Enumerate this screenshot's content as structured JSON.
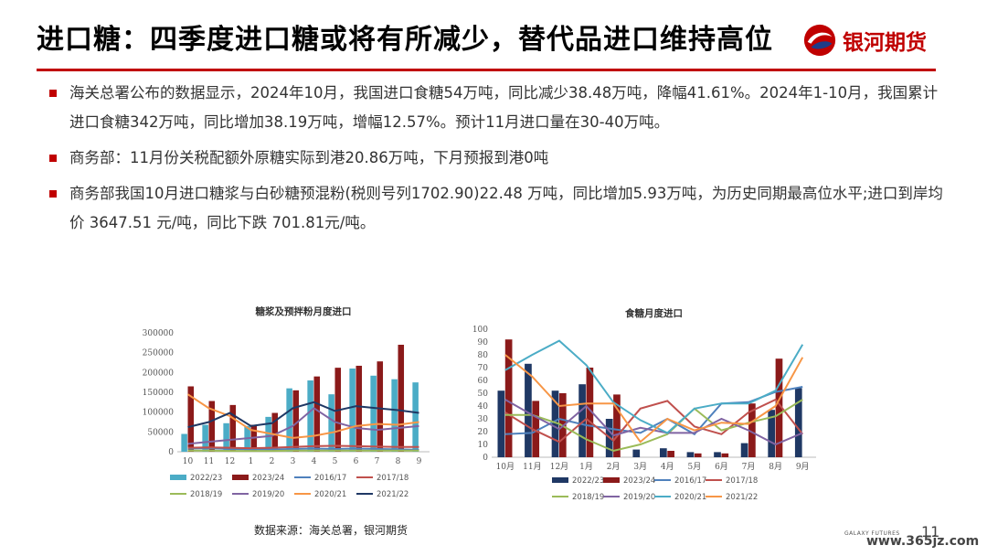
{
  "slide": {
    "title": "进口糖：四季度进口糖或将有所减少，替代品进口维持高位",
    "logo_text": "银河期货",
    "bullets": [
      "海关总署公布的数据显示，2024年10月，我国进口食糖54万吨，同比减少38.48万吨，降幅41.61%。2024年1-10月，我国累计进口食糖342万吨，同比增加38.19万吨，增幅12.57%。预计11月进口量在30-40万吨。",
      "商务部：11月份关税配额外原糖实际到港20.86万吨，下月预报到港0吨",
      "商务部我国10月进口糖浆与白砂糖预混粉(税则号列1702.90)22.48 万吨，同比增加5.93万吨，为历史同期最高位水平;进口到岸均价 3647.51 元/吨，同比下跌 701.81元/吨。"
    ],
    "source": "数据来源：海关总署，银河期货",
    "footer_brand": "GALAXY FUTURES",
    "page_number": "11",
    "watermark": "www.365jz.com",
    "colors": {
      "brand_red": "#c00000",
      "title_rule": "#c00000"
    }
  },
  "chart_data": [
    {
      "type": "bar",
      "title": "糖浆及预拌粉月度进口",
      "categories": [
        "10",
        "11",
        "12",
        "1",
        "2",
        "3",
        "4",
        "5",
        "6",
        "7",
        "8",
        "9"
      ],
      "ylim": [
        0,
        300000
      ],
      "yticks": [
        0,
        50000,
        100000,
        150000,
        200000,
        250000,
        300000
      ],
      "bar_series": [
        {
          "name": "2022/23",
          "color": "#4bacc6",
          "values": [
            45000,
            68000,
            72000,
            65000,
            88000,
            160000,
            180000,
            145000,
            210000,
            192000,
            183000,
            175000
          ]
        },
        {
          "name": "2023/24",
          "color": "#8b1a1a",
          "values": [
            165000,
            128000,
            118000,
            68000,
            98000,
            155000,
            190000,
            212000,
            217000,
            228000,
            270000,
            null
          ]
        }
      ],
      "line_series": [
        {
          "name": "2016/17",
          "color": "#4f81bd",
          "values": [
            8000,
            9000,
            7000,
            6000,
            6000,
            7000,
            8000,
            7000,
            8000,
            7000,
            6000,
            5000
          ]
        },
        {
          "name": "2017/18",
          "color": "#c0504d",
          "values": [
            10000,
            11000,
            10000,
            9000,
            10000,
            12000,
            14000,
            15000,
            14000,
            13000,
            12000,
            12000
          ]
        },
        {
          "name": "2018/19",
          "color": "#9bbb59",
          "values": [
            3000,
            3000,
            2000,
            2000,
            2000,
            3000,
            3000,
            3000,
            3000,
            3000,
            3000,
            3000
          ]
        },
        {
          "name": "2019/20",
          "color": "#8064a2",
          "values": [
            20000,
            25000,
            30000,
            35000,
            40000,
            65000,
            110000,
            75000,
            60000,
            55000,
            60000,
            65000
          ]
        },
        {
          "name": "2020/21",
          "color": "#f79646",
          "values": [
            145000,
            110000,
            90000,
            55000,
            45000,
            35000,
            40000,
            50000,
            65000,
            70000,
            68000,
            75000
          ]
        },
        {
          "name": "2021/22",
          "color": "#1f3864",
          "values": [
            62000,
            75000,
            98000,
            65000,
            72000,
            110000,
            125000,
            103000,
            115000,
            110000,
            105000,
            98000
          ]
        }
      ]
    },
    {
      "type": "bar",
      "title": "食糖月度进口",
      "categories": [
        "10月",
        "11月",
        "12月",
        "1月",
        "2月",
        "3月",
        "4月",
        "5月",
        "6月",
        "7月",
        "8月",
        "9月"
      ],
      "ylim": [
        0,
        100
      ],
      "yticks": [
        0,
        10,
        20,
        30,
        40,
        50,
        60,
        70,
        80,
        90,
        100
      ],
      "bar_series": [
        {
          "name": "2022/23",
          "color": "#1f3864",
          "values": [
            52,
            73,
            52,
            57,
            30,
            6,
            7,
            4,
            4,
            11,
            37,
            54
          ]
        },
        {
          "name": "2023/24",
          "color": "#8b1a1a",
          "values": [
            92,
            44,
            50,
            70,
            49,
            null,
            5,
            3,
            3,
            42,
            77,
            null
          ]
        }
      ],
      "line_series": [
        {
          "name": "2016/17",
          "color": "#4f81bd",
          "values": [
            18,
            19,
            30,
            25,
            22,
            19,
            30,
            18,
            42,
            43,
            51,
            55
          ]
        },
        {
          "name": "2017/18",
          "color": "#c0504d",
          "values": [
            35,
            22,
            12,
            30,
            13,
            38,
            44,
            24,
            18,
            35,
            45,
            18
          ]
        },
        {
          "name": "2018/19",
          "color": "#9bbb59",
          "values": [
            33,
            33,
            26,
            14,
            5,
            10,
            18,
            38,
            21,
            27,
            32,
            45
          ]
        },
        {
          "name": "2019/20",
          "color": "#8064a2",
          "values": [
            45,
            33,
            22,
            40,
            17,
            23,
            19,
            19,
            30,
            21,
            10,
            19
          ]
        },
        {
          "name": "2020/21",
          "color": "#4bacc6",
          "values": [
            68,
            80,
            91,
            72,
            43,
            29,
            19,
            38,
            42,
            42,
            52,
            88
          ]
        },
        {
          "name": "2021/22",
          "color": "#f79646",
          "values": [
            80,
            63,
            40,
            42,
            42,
            12,
            30,
            21,
            27,
            26,
            40,
            78
          ]
        }
      ]
    }
  ]
}
